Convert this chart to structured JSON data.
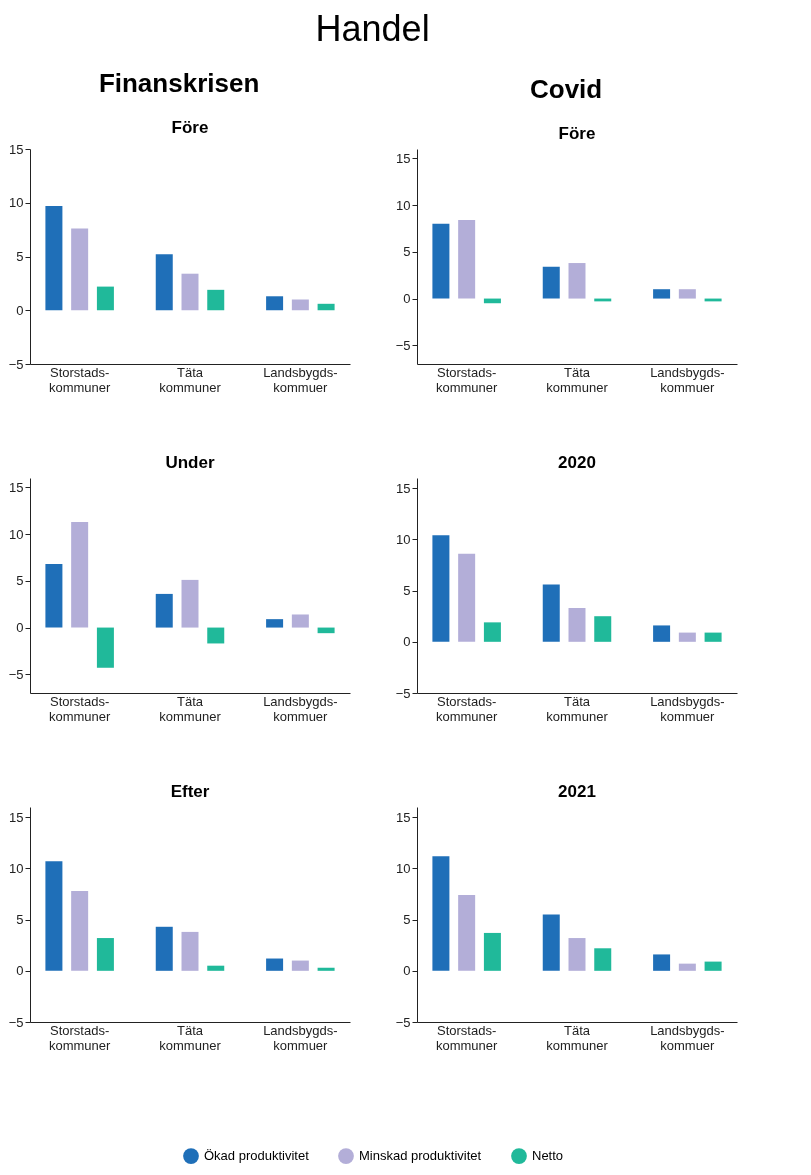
{
  "chart_data": [
    {
      "type": "bar",
      "title": "Före",
      "annotations": [
        "Handel",
        "Finanskrisen"
      ],
      "categories": [
        "Storstads-kommuner",
        "Täta kommuner",
        "Landsbygds-kommuer"
      ],
      "ylim": [
        -5,
        15
      ],
      "yticks": [
        -5,
        0,
        5,
        10,
        15
      ],
      "grid": false,
      "legend": "bottom",
      "series": [
        {
          "name": "Ökad produktivitet",
          "color": "#1f6fb8",
          "values": [
            9.7,
            5.2,
            1.3
          ]
        },
        {
          "name": "Minskad produktivitet",
          "color": "#b3aed8",
          "values": [
            7.6,
            3.4,
            1.0
          ]
        },
        {
          "name": "Netto",
          "color": "#20b99a",
          "values": [
            2.2,
            1.9,
            0.6
          ]
        }
      ]
    },
    {
      "type": "bar",
      "title": "Före",
      "annotations": [
        "Covid"
      ],
      "categories": [
        "Storstads-kommuner",
        "Täta kommuner",
        "Landsbygds-kommuer"
      ],
      "ylim": [
        -7,
        16
      ],
      "yticks": [
        -5,
        0,
        5,
        10,
        15
      ],
      "grid": false,
      "legend": "bottom",
      "series": [
        {
          "name": "Ökad produktivitet",
          "color": "#1f6fb8",
          "values": [
            8.0,
            3.4,
            1.0
          ]
        },
        {
          "name": "Minskad produktivitet",
          "color": "#b3aed8",
          "values": [
            8.4,
            3.8,
            1.0
          ]
        },
        {
          "name": "Netto",
          "color": "#20b99a",
          "values": [
            -0.5,
            -0.3,
            -0.3
          ]
        }
      ]
    },
    {
      "type": "bar",
      "title": "Under",
      "categories": [
        "Storstads-kommuner",
        "Täta kommuner",
        "Landsbygds-kommuer"
      ],
      "ylim": [
        -7,
        16
      ],
      "yticks": [
        -5,
        0,
        5,
        10,
        15
      ],
      "grid": false,
      "legend": "bottom",
      "series": [
        {
          "name": "Ökad produktivitet",
          "color": "#1f6fb8",
          "values": [
            6.8,
            3.6,
            0.9
          ]
        },
        {
          "name": "Minskad produktivitet",
          "color": "#b3aed8",
          "values": [
            11.3,
            5.1,
            1.4
          ]
        },
        {
          "name": "Netto",
          "color": "#20b99a",
          "values": [
            -4.3,
            -1.7,
            -0.6
          ]
        }
      ]
    },
    {
      "type": "bar",
      "title": "2020",
      "categories": [
        "Storstads-kommuner",
        "Täta kommuner",
        "Landsbygds-kommuer"
      ],
      "ylim": [
        -5,
        16
      ],
      "yticks": [
        -5,
        0,
        5,
        10,
        15
      ],
      "grid": false,
      "legend": "bottom",
      "series": [
        {
          "name": "Ökad produktivitet",
          "color": "#1f6fb8",
          "values": [
            10.4,
            5.6,
            1.6
          ]
        },
        {
          "name": "Minskad produktivitet",
          "color": "#b3aed8",
          "values": [
            8.6,
            3.3,
            0.9
          ]
        },
        {
          "name": "Netto",
          "color": "#20b99a",
          "values": [
            1.9,
            2.5,
            0.9
          ]
        }
      ]
    },
    {
      "type": "bar",
      "title": "Efter",
      "categories": [
        "Storstads-kommuner",
        "Täta kommuner",
        "Landsbygds-kommuer"
      ],
      "ylim": [
        -5,
        16
      ],
      "yticks": [
        -5,
        0,
        5,
        10,
        15
      ],
      "grid": false,
      "legend": "bottom",
      "series": [
        {
          "name": "Ökad produktivitet",
          "color": "#1f6fb8",
          "values": [
            10.7,
            4.3,
            1.2
          ]
        },
        {
          "name": "Minskad produktivitet",
          "color": "#b3aed8",
          "values": [
            7.8,
            3.8,
            1.0
          ]
        },
        {
          "name": "Netto",
          "color": "#20b99a",
          "values": [
            3.2,
            0.5,
            0.3
          ]
        }
      ]
    },
    {
      "type": "bar",
      "title": "2021",
      "categories": [
        "Storstads-kommuner",
        "Täta kommuner",
        "Landsbygds-kommuer"
      ],
      "ylim": [
        -5,
        16
      ],
      "yticks": [
        -5,
        0,
        5,
        10,
        15
      ],
      "grid": false,
      "legend": "bottom",
      "series": [
        {
          "name": "Ökad produktivitet",
          "color": "#1f6fb8",
          "values": [
            11.2,
            5.5,
            1.6
          ]
        },
        {
          "name": "Minskad produktivitet",
          "color": "#b3aed8",
          "values": [
            7.4,
            3.2,
            0.7
          ]
        },
        {
          "name": "Netto",
          "color": "#20b99a",
          "values": [
            3.7,
            2.2,
            0.9
          ]
        }
      ]
    }
  ]
}
